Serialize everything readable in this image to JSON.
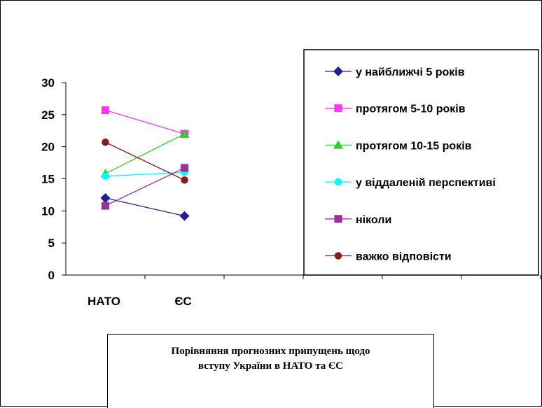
{
  "chart_data": {
    "type": "line",
    "categories": [
      "НАТО",
      "ЄС"
    ],
    "ylim": [
      0,
      30
    ],
    "yticks": [
      0,
      5,
      10,
      15,
      20,
      25,
      30
    ],
    "grid": false,
    "legend_position": "right",
    "series": [
      {
        "name": "у найближчі 5 років",
        "values": [
          12,
          9.2
        ],
        "color": "#1f1f8f",
        "marker": "diamond"
      },
      {
        "name": "протягом 5-10 років",
        "values": [
          25.7,
          22
        ],
        "color": "#ff33ff",
        "marker": "square"
      },
      {
        "name": "протягом 10-15 років",
        "values": [
          15.8,
          22
        ],
        "color": "#33cc33",
        "marker": "triangle"
      },
      {
        "name": "у віддаленій перспективі",
        "values": [
          15.4,
          16
        ],
        "color": "#00ffff",
        "marker": "circle"
      },
      {
        "name": "ніколи",
        "values": [
          10.8,
          16.7
        ],
        "color": "#993399",
        "marker": "square"
      },
      {
        "name": "важко відповісти",
        "values": [
          20.7,
          14.8
        ],
        "color": "#8b1a1a",
        "marker": "circle"
      }
    ]
  },
  "caption": {
    "line1": "Порівняння прогнозних припущень щодо",
    "line2": "вступу України в НАТО та ЄС"
  }
}
